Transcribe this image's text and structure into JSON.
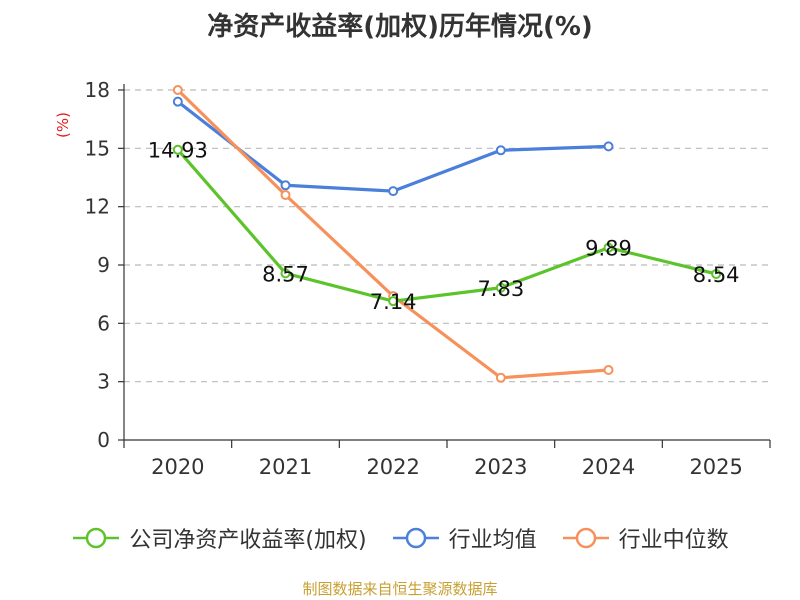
{
  "chart_data": {
    "type": "line",
    "title": "净资产收益率(加权)历年情况(%)",
    "ylabel": "(%)",
    "xlabel": "",
    "categories": [
      "2020",
      "2021",
      "2022",
      "2023",
      "2024",
      "2025"
    ],
    "y_ticks": [
      0,
      3,
      6,
      9,
      12,
      15,
      18
    ],
    "ylim": [
      0,
      18
    ],
    "grid": true,
    "legend_position": "bottom",
    "series": [
      {
        "name": "公司净资产收益率(加权)",
        "color": "#5cc42a",
        "values": [
          14.93,
          8.57,
          7.14,
          7.83,
          9.89,
          8.54
        ],
        "labels": [
          "14.93",
          "8.57",
          "7.14",
          "7.83",
          "9.89",
          "8.54"
        ]
      },
      {
        "name": "行业均值",
        "color": "#4a7fdb",
        "values": [
          17.4,
          13.1,
          12.8,
          14.9,
          15.1,
          null
        ]
      },
      {
        "name": "行业中位数",
        "color": "#f7915b",
        "values": [
          18.0,
          12.6,
          7.4,
          3.2,
          3.6,
          null
        ]
      }
    ]
  },
  "source_note": "制图数据来自恒生聚源数据库",
  "colors": {
    "source_note": "#c8a032",
    "ylabel": "#e02020"
  }
}
